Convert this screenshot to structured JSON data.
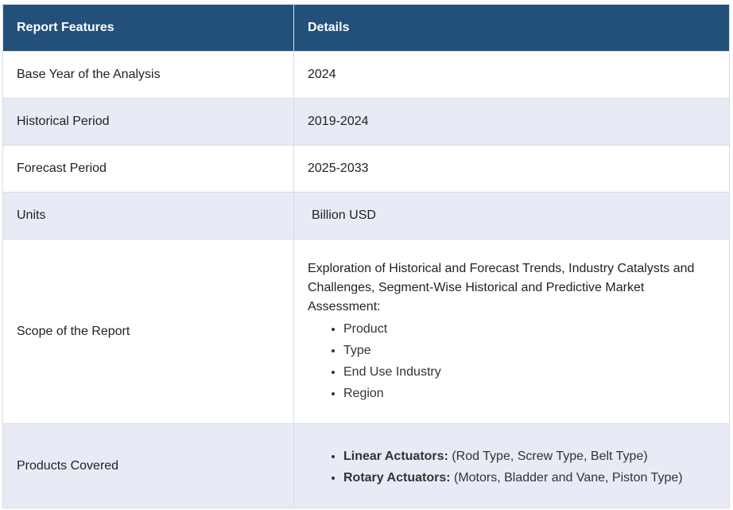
{
  "table": {
    "header": [
      "Report Features",
      "Details"
    ],
    "rows": [
      {
        "feature": "Base Year of the Analysis",
        "details": "2024"
      },
      {
        "feature": "Historical Period",
        "details": "2019-2024"
      },
      {
        "feature": "Forecast Period",
        "details": "2025-2033"
      },
      {
        "feature": "Units",
        "details": "Billion USD"
      },
      {
        "feature": "Scope of the Report",
        "details": {
          "text": "Exploration of Historical and Forecast Trends, Industry Catalysts and Challenges, Segment-Wise Historical and Predictive Market Assessment:",
          "items": [
            "Product",
            "Type",
            "End Use Industry",
            "Region"
          ]
        }
      },
      {
        "feature": "Products Covered",
        "details": {
          "items": [
            {
              "label": "Linear Actuators:",
              "text": "(Rod Type, Screw Type, Belt Type)"
            },
            {
              "label": "Rotary Actuators:",
              "text": "(Motors, Bladder and Vane, Piston Type)"
            }
          ]
        }
      }
    ]
  }
}
